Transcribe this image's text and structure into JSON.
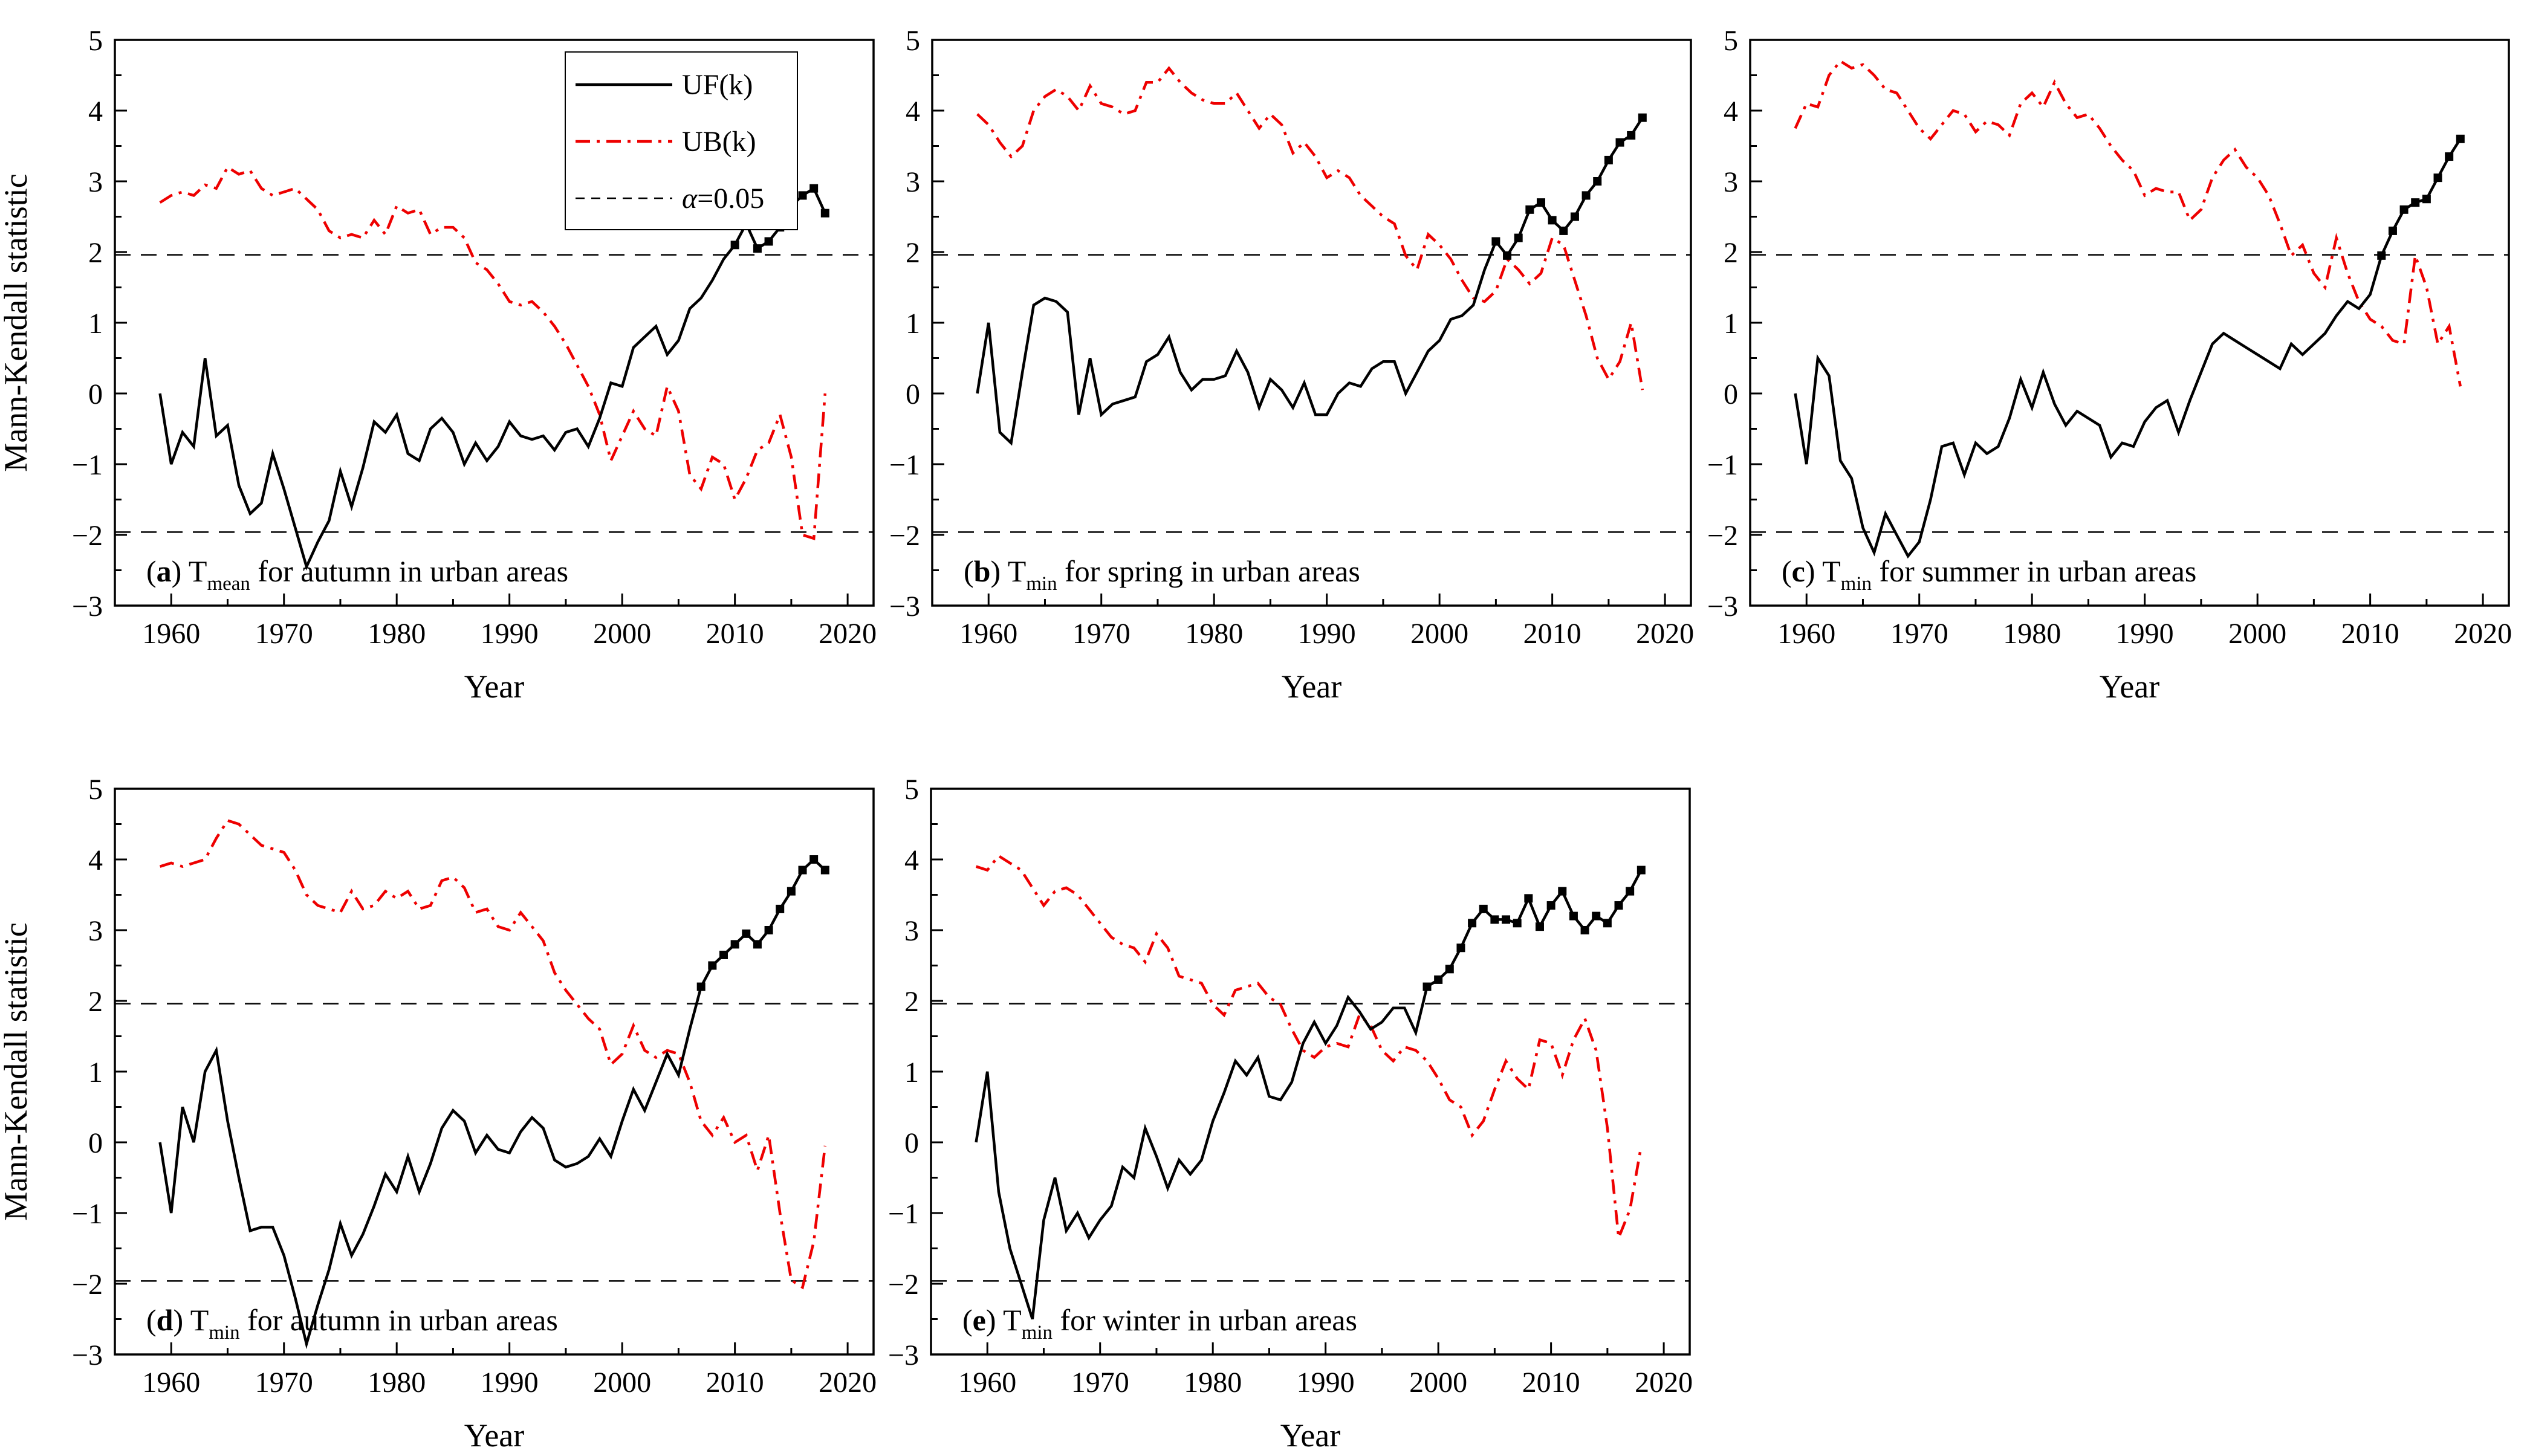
{
  "figure": {
    "background": "#ffffff",
    "ylabel": "Mann-Kendall statistic",
    "xlabel": "Year",
    "significance_level": 1.96,
    "colors": {
      "uf": "#000000",
      "ub": "#ee0000",
      "alpha_line": "#000000",
      "frame": "#000000"
    },
    "legend": {
      "shown_on_panel": "a",
      "entries": [
        {
          "label": "UF(k)",
          "line_style": "solid",
          "color": "#000000"
        },
        {
          "label": "UB(k)",
          "line_style": "dashdot",
          "color": "#ee0000"
        },
        {
          "label": "α=0.05",
          "line_style": "dash",
          "color": "#000000"
        }
      ]
    }
  },
  "chart_data": [
    {
      "id": "a",
      "type": "line",
      "title_parts": {
        "letter": "a",
        "symbol": "T",
        "subscript": "mean",
        "text": "for autumn in urban areas"
      },
      "xlabel": "Year",
      "ylabel": "Mann-Kendall statistic",
      "xlim": [
        1955,
        2022.3
      ],
      "ylim": [
        -3,
        5
      ],
      "x_major_ticks": [
        1960,
        1970,
        1980,
        1990,
        2000,
        2010,
        2020
      ],
      "x_minor_ticks": [
        1965,
        1975,
        1985,
        1995,
        2005,
        2015
      ],
      "y_major_ticks": [
        -3,
        -2,
        -1,
        0,
        1,
        2,
        3,
        4,
        5
      ],
      "grid": false,
      "years_start": 1959,
      "show_legend": true,
      "series": [
        {
          "name": "UF(k)",
          "color": "#000000",
          "line_style": "solid",
          "marker": "square",
          "marker_start_year": 2010,
          "values": [
            0.0,
            -1.0,
            -0.55,
            -0.75,
            0.5,
            -0.6,
            -0.45,
            -1.3,
            -1.7,
            -1.55,
            -0.85,
            -1.35,
            -1.9,
            -2.45,
            -2.1,
            -1.8,
            -1.1,
            -1.6,
            -1.05,
            -0.4,
            -0.55,
            -0.3,
            -0.85,
            -0.95,
            -0.5,
            -0.35,
            -0.55,
            -1.0,
            -0.7,
            -0.95,
            -0.75,
            -0.4,
            -0.6,
            -0.65,
            -0.6,
            -0.8,
            -0.55,
            -0.5,
            -0.75,
            -0.35,
            0.15,
            0.1,
            0.65,
            0.8,
            0.95,
            0.55,
            0.75,
            1.2,
            1.35,
            1.6,
            1.9,
            2.1,
            2.4,
            2.05,
            2.15,
            2.35,
            2.65,
            2.8,
            2.9,
            2.55
          ]
        },
        {
          "name": "UB(k)",
          "color": "#ee0000",
          "line_style": "dashdot",
          "marker": null,
          "values": [
            2.7,
            2.8,
            2.85,
            2.8,
            2.95,
            2.9,
            3.2,
            3.1,
            3.15,
            2.9,
            2.8,
            2.85,
            2.9,
            2.75,
            2.6,
            2.3,
            2.2,
            2.25,
            2.2,
            2.45,
            2.25,
            2.65,
            2.55,
            2.6,
            2.25,
            2.35,
            2.35,
            2.2,
            1.85,
            1.75,
            1.55,
            1.3,
            1.25,
            1.3,
            1.15,
            0.95,
            0.7,
            0.4,
            0.1,
            -0.3,
            -0.95,
            -0.6,
            -0.25,
            -0.5,
            -0.6,
            0.1,
            -0.25,
            -1.15,
            -1.35,
            -0.9,
            -1.0,
            -1.5,
            -1.2,
            -0.8,
            -0.7,
            -0.3,
            -0.9,
            -2.0,
            -2.05,
            0.0
          ]
        }
      ]
    },
    {
      "id": "b",
      "type": "line",
      "title_parts": {
        "letter": "b",
        "symbol": "T",
        "subscript": "min",
        "text": "for spring in urban areas"
      },
      "xlabel": "Year",
      "ylabel": null,
      "xlim": [
        1955,
        2022.3
      ],
      "ylim": [
        -3,
        5
      ],
      "x_major_ticks": [
        1960,
        1970,
        1980,
        1990,
        2000,
        2010,
        2020
      ],
      "x_minor_ticks": [
        1965,
        1975,
        1985,
        1995,
        2005,
        2015
      ],
      "y_major_ticks": [
        -3,
        -2,
        -1,
        0,
        1,
        2,
        3,
        4,
        5
      ],
      "grid": false,
      "years_start": 1959,
      "show_legend": false,
      "series": [
        {
          "name": "UF(k)",
          "color": "#000000",
          "line_style": "solid",
          "marker": "square",
          "marker_start_year": 2005,
          "values": [
            0.0,
            1.0,
            -0.55,
            -0.7,
            0.3,
            1.25,
            1.35,
            1.3,
            1.15,
            -0.3,
            0.5,
            -0.3,
            -0.15,
            -0.1,
            -0.05,
            0.45,
            0.55,
            0.8,
            0.3,
            0.05,
            0.2,
            0.2,
            0.25,
            0.6,
            0.3,
            -0.2,
            0.2,
            0.05,
            -0.2,
            0.15,
            -0.3,
            -0.3,
            0.0,
            0.15,
            0.1,
            0.35,
            0.45,
            0.45,
            0.0,
            0.3,
            0.6,
            0.75,
            1.05,
            1.1,
            1.25,
            1.75,
            2.15,
            1.95,
            2.2,
            2.6,
            2.7,
            2.45,
            2.3,
            2.5,
            2.8,
            3.0,
            3.3,
            3.55,
            3.65,
            3.9
          ]
        },
        {
          "name": "UB(k)",
          "color": "#ee0000",
          "line_style": "dashdot",
          "marker": null,
          "values": [
            3.95,
            3.8,
            3.55,
            3.35,
            3.5,
            4.0,
            4.2,
            4.3,
            4.2,
            4.0,
            4.35,
            4.1,
            4.05,
            3.95,
            4.0,
            4.4,
            4.4,
            4.6,
            4.4,
            4.25,
            4.15,
            4.1,
            4.1,
            4.25,
            4.0,
            3.75,
            3.95,
            3.8,
            3.4,
            3.55,
            3.35,
            3.05,
            3.15,
            3.05,
            2.8,
            2.65,
            2.5,
            2.4,
            1.95,
            1.75,
            2.25,
            2.1,
            1.9,
            1.6,
            1.35,
            1.3,
            1.45,
            1.9,
            1.75,
            1.55,
            1.7,
            2.2,
            2.1,
            1.6,
            1.1,
            0.5,
            0.2,
            0.45,
            1.0,
            0.05
          ]
        }
      ]
    },
    {
      "id": "c",
      "type": "line",
      "title_parts": {
        "letter": "c",
        "symbol": "T",
        "subscript": "min",
        "text": "for summer in urban areas"
      },
      "xlabel": "Year",
      "ylabel": null,
      "xlim": [
        1955,
        2022.3
      ],
      "ylim": [
        -3,
        5
      ],
      "x_major_ticks": [
        1960,
        1970,
        1980,
        1990,
        2000,
        2010,
        2020
      ],
      "x_minor_ticks": [
        1965,
        1975,
        1985,
        1995,
        2005,
        2015
      ],
      "y_major_ticks": [
        -3,
        -2,
        -1,
        0,
        1,
        2,
        3,
        4,
        5
      ],
      "grid": false,
      "years_start": 1959,
      "show_legend": false,
      "series": [
        {
          "name": "UF(k)",
          "color": "#000000",
          "line_style": "solid",
          "marker": "square",
          "marker_start_year": 2011,
          "values": [
            0.0,
            -1.0,
            0.5,
            0.25,
            -0.95,
            -1.2,
            -1.9,
            -2.25,
            -1.7,
            -2.0,
            -2.3,
            -2.1,
            -1.5,
            -0.75,
            -0.7,
            -1.15,
            -0.7,
            -0.85,
            -0.75,
            -0.35,
            0.2,
            -0.2,
            0.3,
            -0.15,
            -0.45,
            -0.25,
            -0.35,
            -0.45,
            -0.9,
            -0.7,
            -0.75,
            -0.4,
            -0.2,
            -0.1,
            -0.55,
            -0.1,
            0.3,
            0.7,
            0.85,
            0.75,
            0.65,
            0.55,
            0.45,
            0.35,
            0.7,
            0.55,
            0.7,
            0.85,
            1.1,
            1.3,
            1.2,
            1.4,
            1.95,
            2.3,
            2.6,
            2.7,
            2.75,
            3.05,
            3.35,
            3.6
          ]
        },
        {
          "name": "UB(k)",
          "color": "#ee0000",
          "line_style": "dashdot",
          "marker": null,
          "values": [
            3.75,
            4.1,
            4.05,
            4.5,
            4.7,
            4.6,
            4.65,
            4.5,
            4.3,
            4.25,
            4.0,
            3.75,
            3.6,
            3.8,
            4.0,
            3.95,
            3.7,
            3.85,
            3.8,
            3.65,
            4.1,
            4.25,
            4.05,
            4.4,
            4.1,
            3.9,
            3.95,
            3.75,
            3.5,
            3.3,
            3.15,
            2.8,
            2.9,
            2.85,
            2.85,
            2.45,
            2.6,
            3.05,
            3.3,
            3.45,
            3.2,
            3.05,
            2.8,
            2.4,
            1.95,
            2.1,
            1.7,
            1.5,
            2.2,
            1.7,
            1.3,
            1.05,
            0.95,
            0.75,
            0.7,
            1.95,
            1.5,
            0.7,
            0.95,
            0.1
          ]
        }
      ]
    },
    {
      "id": "d",
      "type": "line",
      "title_parts": {
        "letter": "d",
        "symbol": "T",
        "subscript": "min",
        "text": "for autumn in urban areas"
      },
      "xlabel": "Year",
      "ylabel": "Mann-Kendall statistic",
      "xlim": [
        1955,
        2022.3
      ],
      "ylim": [
        -3,
        5
      ],
      "x_major_ticks": [
        1960,
        1970,
        1980,
        1990,
        2000,
        2010,
        2020
      ],
      "x_minor_ticks": [
        1965,
        1975,
        1985,
        1995,
        2005,
        2015
      ],
      "y_major_ticks": [
        -3,
        -2,
        -1,
        0,
        1,
        2,
        3,
        4,
        5
      ],
      "grid": false,
      "years_start": 1959,
      "show_legend": false,
      "series": [
        {
          "name": "UF(k)",
          "color": "#000000",
          "line_style": "solid",
          "marker": "square",
          "marker_start_year": 2007,
          "values": [
            0.0,
            -1.0,
            0.5,
            0.0,
            1.0,
            1.3,
            0.3,
            -0.5,
            -1.25,
            -1.2,
            -1.2,
            -1.6,
            -2.2,
            -2.85,
            -2.3,
            -1.8,
            -1.15,
            -1.6,
            -1.3,
            -0.9,
            -0.45,
            -0.7,
            -0.2,
            -0.7,
            -0.3,
            0.2,
            0.45,
            0.3,
            -0.15,
            0.1,
            -0.1,
            -0.15,
            0.15,
            0.35,
            0.2,
            -0.25,
            -0.35,
            -0.3,
            -0.2,
            0.05,
            -0.2,
            0.3,
            0.75,
            0.45,
            0.85,
            1.25,
            0.95,
            1.6,
            2.2,
            2.5,
            2.65,
            2.8,
            2.95,
            2.8,
            3.0,
            3.3,
            3.55,
            3.85,
            4.0,
            3.85
          ]
        },
        {
          "name": "UB(k)",
          "color": "#ee0000",
          "line_style": "dashdot",
          "marker": null,
          "values": [
            3.9,
            3.95,
            3.9,
            3.95,
            4.0,
            4.3,
            4.55,
            4.5,
            4.35,
            4.2,
            4.15,
            4.1,
            3.85,
            3.5,
            3.35,
            3.3,
            3.25,
            3.55,
            3.3,
            3.35,
            3.55,
            3.45,
            3.55,
            3.3,
            3.35,
            3.7,
            3.75,
            3.6,
            3.25,
            3.3,
            3.05,
            3.0,
            3.25,
            3.05,
            2.85,
            2.4,
            2.15,
            1.95,
            1.75,
            1.6,
            1.1,
            1.25,
            1.65,
            1.3,
            1.2,
            1.3,
            1.25,
            0.85,
            0.3,
            0.1,
            0.35,
            0.0,
            0.1,
            -0.4,
            0.1,
            -1.0,
            -1.95,
            -2.05,
            -1.4,
            -0.05
          ]
        }
      ]
    },
    {
      "id": "e",
      "type": "line",
      "title_parts": {
        "letter": "e",
        "symbol": "T",
        "subscript": "min",
        "text": "for winter in urban areas"
      },
      "xlabel": "Year",
      "ylabel": null,
      "xlim": [
        1955,
        2022.3
      ],
      "ylim": [
        -3,
        5
      ],
      "x_major_ticks": [
        1960,
        1970,
        1980,
        1990,
        2000,
        2010,
        2020
      ],
      "x_minor_ticks": [
        1965,
        1975,
        1985,
        1995,
        2005,
        2015
      ],
      "y_major_ticks": [
        -3,
        -2,
        -1,
        0,
        1,
        2,
        3,
        4,
        5
      ],
      "grid": false,
      "years_start": 1959,
      "show_legend": false,
      "series": [
        {
          "name": "UF(k)",
          "color": "#000000",
          "line_style": "solid",
          "marker": "square",
          "marker_start_year": 1999,
          "values": [
            0.0,
            1.0,
            -0.7,
            -1.5,
            -2.0,
            -2.5,
            -1.1,
            -0.5,
            -1.25,
            -1.0,
            -1.35,
            -1.1,
            -0.9,
            -0.35,
            -0.5,
            0.2,
            -0.2,
            -0.65,
            -0.25,
            -0.45,
            -0.25,
            0.3,
            0.7,
            1.15,
            0.95,
            1.2,
            0.65,
            0.6,
            0.85,
            1.4,
            1.7,
            1.4,
            1.65,
            2.05,
            1.85,
            1.6,
            1.7,
            1.9,
            1.9,
            1.55,
            2.2,
            2.3,
            2.45,
            2.75,
            3.1,
            3.3,
            3.15,
            3.15,
            3.1,
            3.45,
            3.05,
            3.35,
            3.55,
            3.2,
            3.0,
            3.2,
            3.1,
            3.35,
            3.55,
            3.85
          ]
        },
        {
          "name": "UB(k)",
          "color": "#ee0000",
          "line_style": "dashdot",
          "marker": null,
          "values": [
            3.9,
            3.85,
            4.05,
            3.95,
            3.85,
            3.6,
            3.35,
            3.55,
            3.6,
            3.5,
            3.3,
            3.1,
            2.9,
            2.8,
            2.75,
            2.55,
            2.95,
            2.75,
            2.35,
            2.3,
            2.25,
            1.95,
            1.8,
            2.15,
            2.2,
            2.25,
            2.05,
            1.95,
            1.6,
            1.3,
            1.2,
            1.35,
            1.4,
            1.35,
            1.8,
            1.65,
            1.3,
            1.15,
            1.35,
            1.3,
            1.15,
            0.9,
            0.6,
            0.5,
            0.1,
            0.3,
            0.75,
            1.15,
            0.9,
            0.75,
            1.45,
            1.4,
            0.95,
            1.45,
            1.75,
            1.3,
            0.2,
            -1.35,
            -0.95,
            -0.05
          ]
        }
      ]
    }
  ]
}
